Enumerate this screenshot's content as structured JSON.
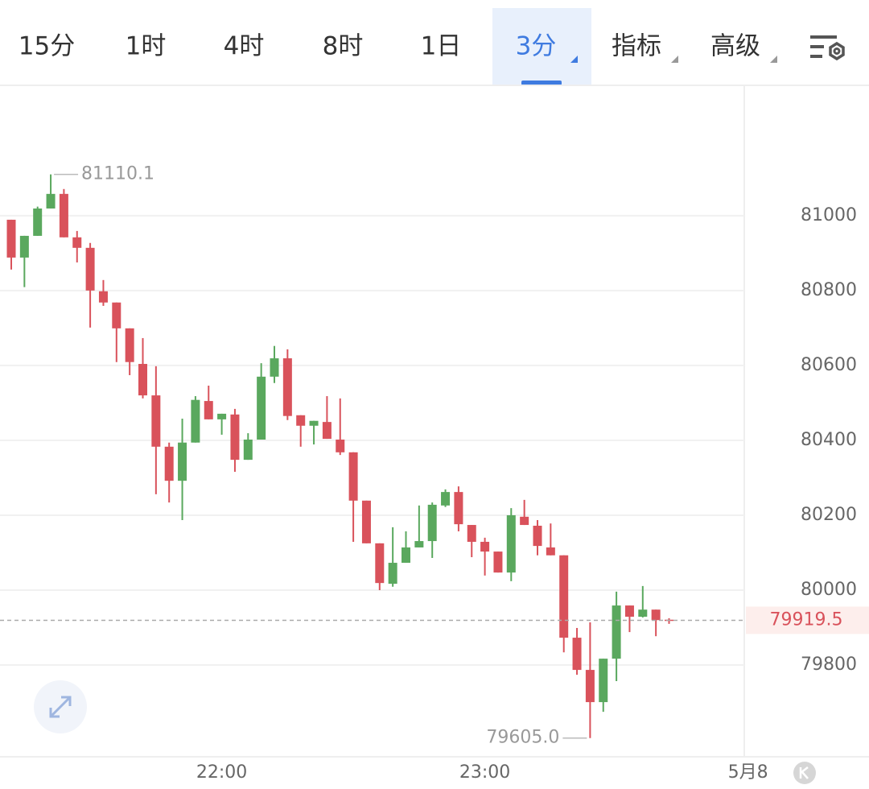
{
  "tabs": {
    "items": [
      "15分",
      "1时",
      "4时",
      "8时",
      "1日",
      "3分",
      "指标",
      "高级"
    ],
    "active": 5
  },
  "chart_data": {
    "type": "candlestick",
    "categories": [
      null,
      null,
      null,
      null,
      null,
      null,
      null,
      null,
      null,
      null,
      null,
      null,
      null,
      null,
      null,
      null,
      "22:00",
      null,
      null,
      null,
      null,
      null,
      null,
      null,
      null,
      null,
      null,
      null,
      null,
      null,
      null,
      null,
      null,
      null,
      null,
      null,
      "23:00",
      null,
      null,
      null,
      null,
      null,
      null,
      null,
      null,
      null,
      null,
      null,
      null,
      null,
      null,
      null,
      null,
      null,
      null,
      null,
      "5月8"
    ],
    "open": [
      80989,
      80888,
      80946,
      81019,
      81058,
      80942,
      80914,
      80798,
      80768,
      80699,
      80604,
      80520,
      80383,
      80292,
      80394,
      80505,
      80456,
      80469,
      80348,
      80402,
      80570,
      80619,
      80467,
      80439,
      80449,
      80402,
      80368,
      80239,
      80125,
      80017,
      80073,
      80114,
      80131,
      80226,
      80262,
      80174,
      80129,
      80103,
      80047,
      80196,
      80172,
      80114,
      80093,
      79873,
      79787,
      79701,
      79817,
      79959,
      79929,
      79948,
      79921,
      null,
      null,
      null,
      null,
      null,
      null
    ],
    "high": [
      80989,
      80946,
      81024,
      81110.1,
      81071,
      80959,
      80927,
      80828,
      80768,
      80699,
      80673,
      80598,
      80394,
      80458,
      80518,
      80546,
      80471,
      80484,
      80419,
      80606,
      80652,
      80643,
      80467,
      80452,
      80518,
      80512,
      80368,
      80239,
      80125,
      80168,
      80157,
      80226,
      80234,
      80269,
      80277,
      80174,
      80140,
      80103,
      80219,
      80241,
      80187,
      80178,
      80093,
      79899,
      79914,
      79817,
      79996,
      79959,
      80011,
      79948,
      79925,
      null,
      null,
      null,
      null,
      null,
      null
    ],
    "low": [
      80856,
      80809,
      80946,
      81019,
      80942,
      80875,
      80701,
      80759,
      80609,
      80574,
      80512,
      80256,
      80234,
      80187,
      80394,
      80456,
      80415,
      80316,
      80348,
      80402,
      80553,
      80454,
      80383,
      80389,
      80404,
      80361,
      80129,
      80125,
      80000,
      80009,
      80073,
      80114,
      80086,
      80222,
      80157,
      80088,
      80039,
      80047,
      80024,
      80174,
      80093,
      80093,
      79834,
      79774,
      79605,
      79675,
      79757,
      79888,
      79927,
      79877,
      79910,
      null,
      null,
      null,
      null,
      null,
      null
    ],
    "close": [
      80888,
      80946,
      81019,
      81058,
      80942,
      80914,
      80800,
      80768,
      80699,
      80609,
      80520,
      80383,
      80292,
      80394,
      80508,
      80456,
      80471,
      80348,
      80402,
      80570,
      80619,
      80465,
      80439,
      80452,
      80404,
      80368,
      80239,
      80125,
      80019,
      80073,
      80114,
      80131,
      80228,
      80262,
      80176,
      80129,
      80103,
      80047,
      80200,
      80174,
      80118,
      80093,
      79873,
      79787,
      79701,
      79817,
      79959,
      79929,
      79948,
      79920,
      79919.5,
      null,
      null,
      null,
      null,
      null,
      null
    ],
    "up_color": "#5aa85e",
    "down_color": "#d9525b",
    "ylim": [
      79555,
      81350
    ],
    "yticks": [
      79800,
      80000,
      80200,
      80400,
      80600,
      80800,
      81000
    ],
    "grid": true,
    "last_price": 79919.5,
    "annotations": [
      {
        "value": 81110.1,
        "label": "81110.1"
      },
      {
        "value": 79605,
        "label": "79605.0"
      }
    ]
  }
}
